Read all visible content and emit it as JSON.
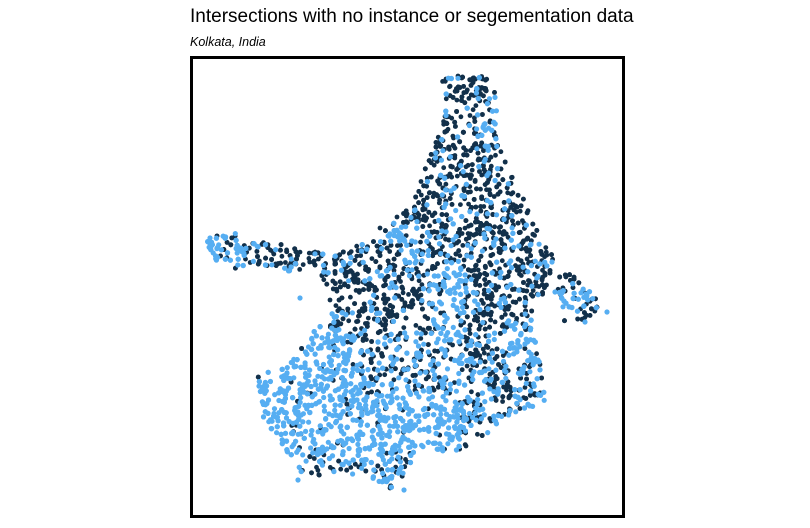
{
  "map": {
    "title": "Intersections with no instance or segementation data",
    "subtitle": "Kolkata, India",
    "colors": {
      "dark_points": "#12304a",
      "light_points": "#56aef2",
      "background": "#ffffff",
      "border": "#000000"
    }
  }
}
